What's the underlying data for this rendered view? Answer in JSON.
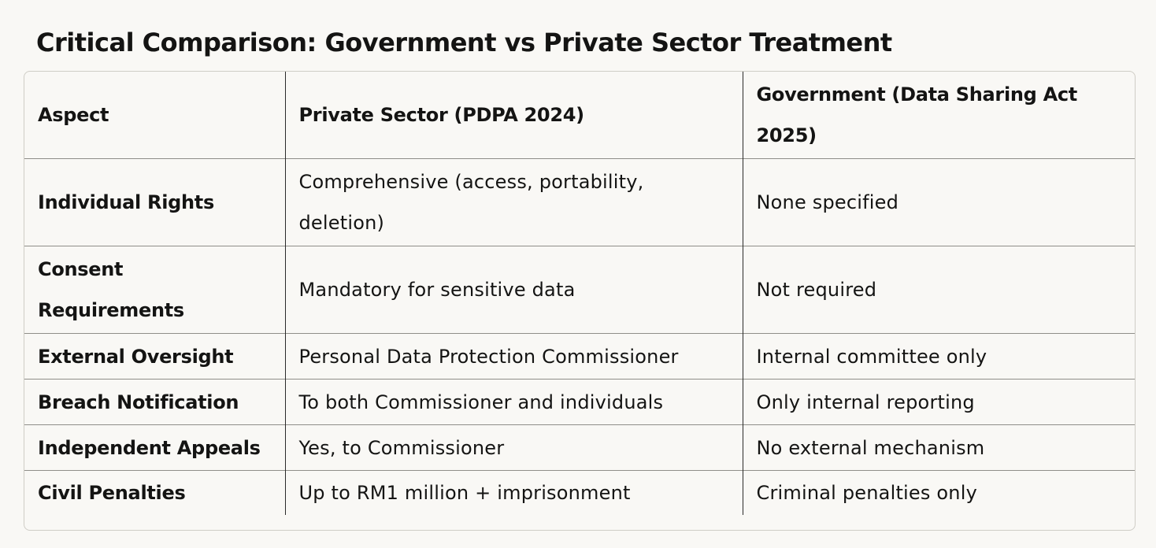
{
  "heading": "Critical Comparison: Government vs Private Sector Treatment",
  "table": {
    "headers": [
      "Aspect",
      "Private Sector (PDPA 2024)",
      "Government (Data Sharing Act 2025)"
    ],
    "rows": [
      [
        "Individual Rights",
        "Comprehensive (access, portability, deletion)",
        "None specified"
      ],
      [
        "Consent Requirements",
        "Mandatory for sensitive data",
        "Not required"
      ],
      [
        "External Oversight",
        "Personal Data Protection Commissioner",
        "Internal committee only"
      ],
      [
        "Breach Notification",
        "To both Commissioner and individuals",
        "Only internal reporting"
      ],
      [
        "Independent Appeals",
        "Yes, to Commissioner",
        "No external mechanism"
      ],
      [
        "Civil Penalties",
        "Up to RM1 million + imprisonment",
        "Criminal penalties only"
      ]
    ]
  }
}
